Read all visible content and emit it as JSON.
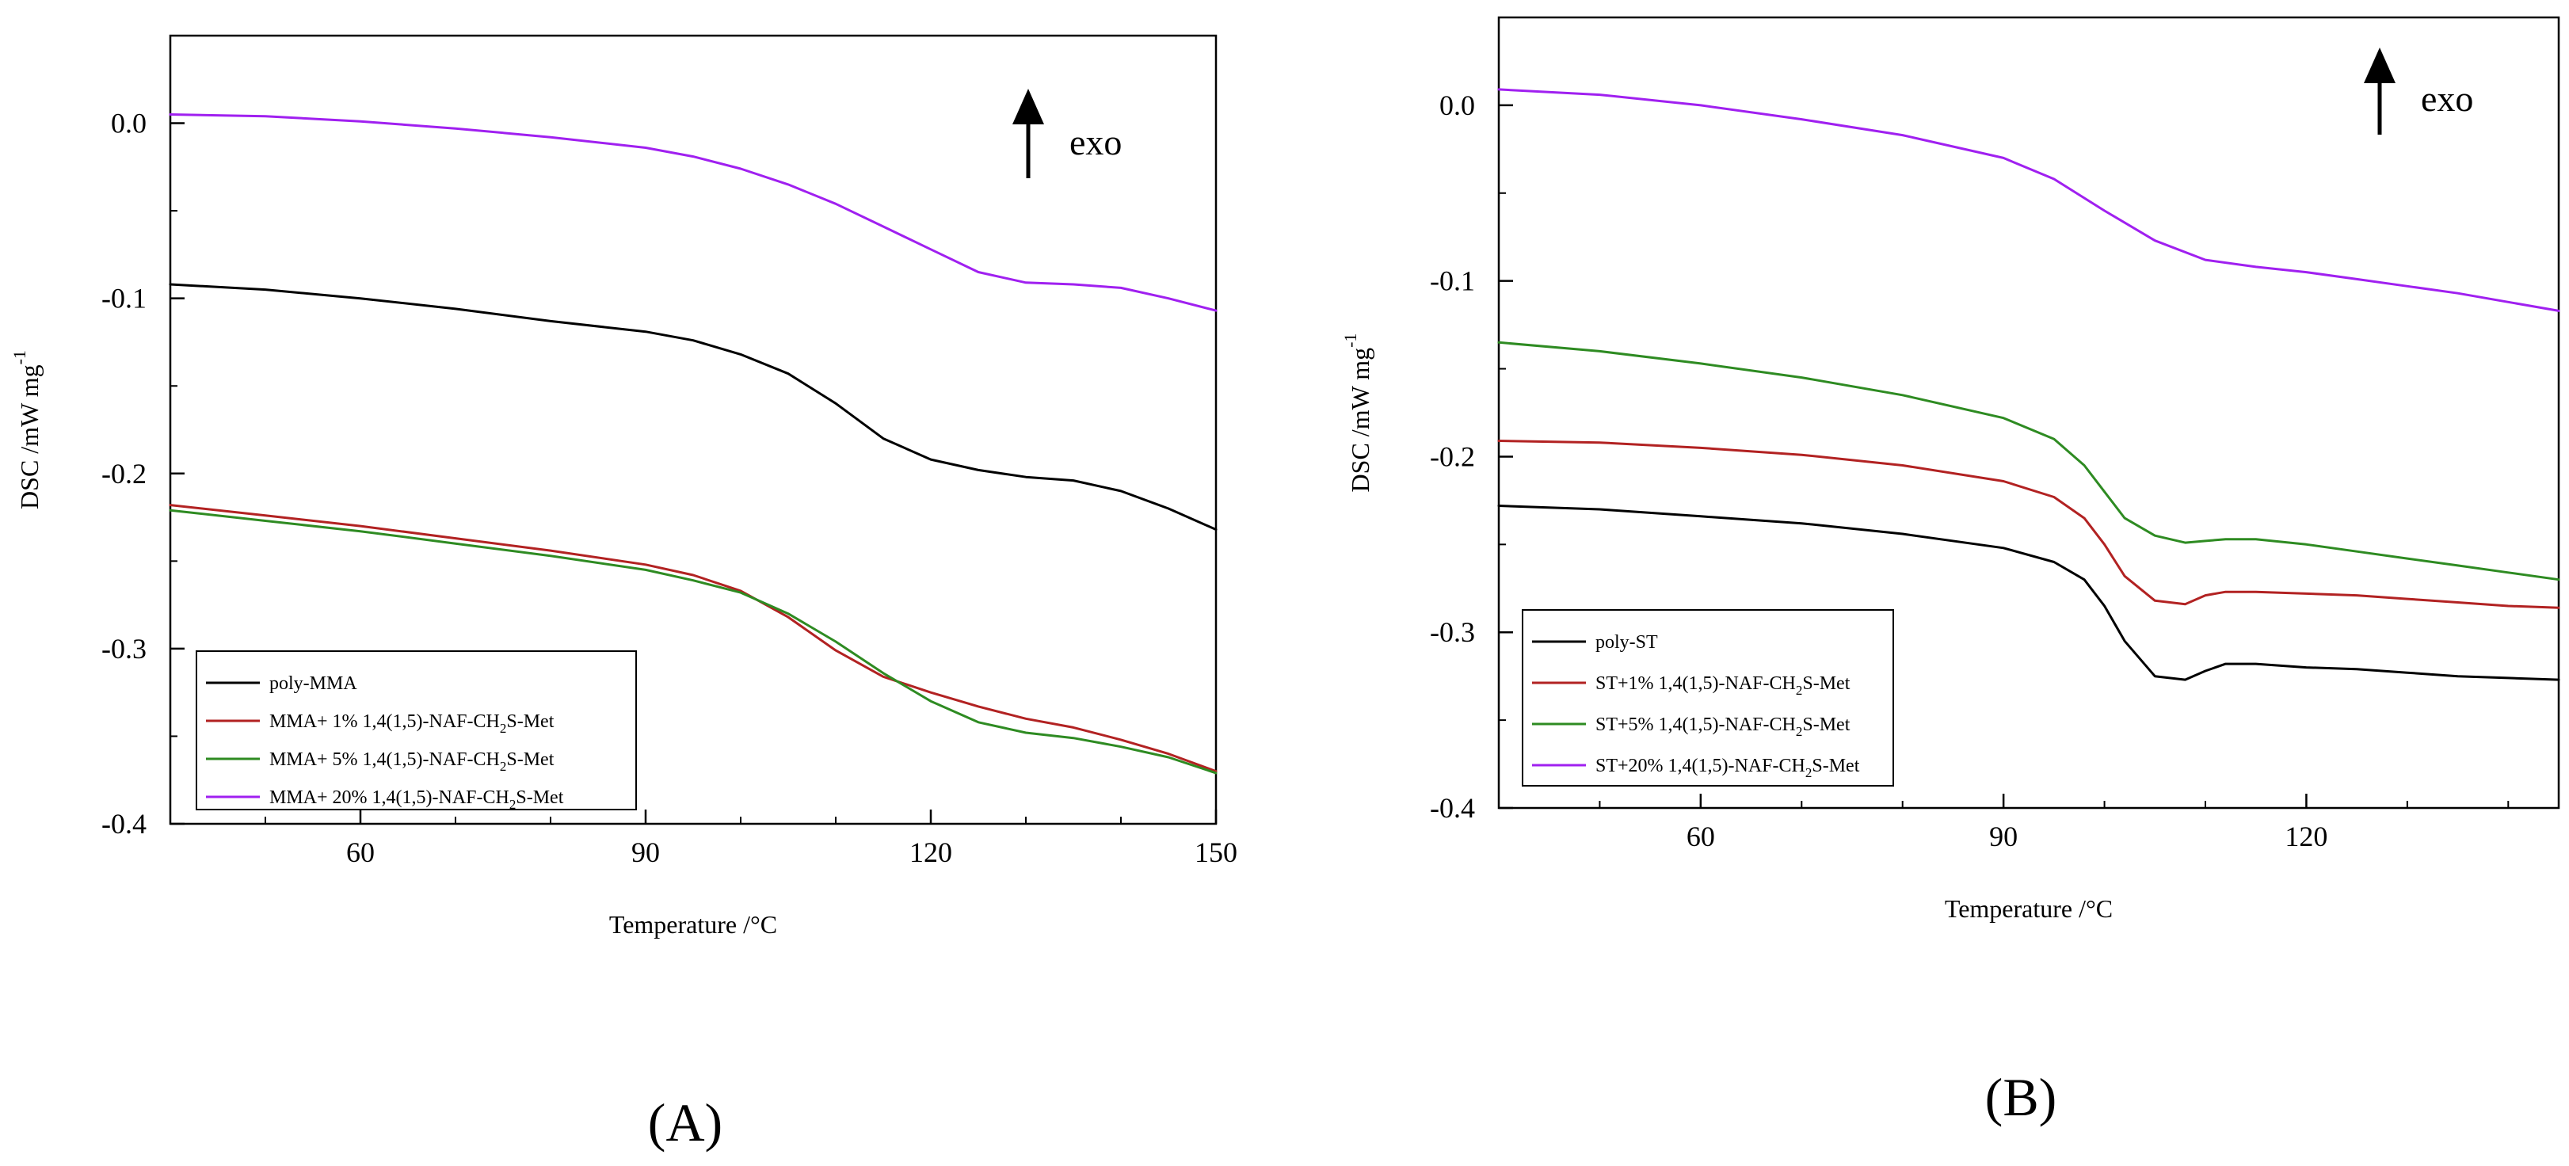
{
  "chart_data": [
    {
      "type": "line",
      "panel_label": "(A)",
      "title": "",
      "xlabel": "Temperature /°C",
      "ylabel": "DSC /mW mg",
      "ylabel_superscript": "-1",
      "xlim": [
        40,
        150
      ],
      "ylim": [
        -0.4,
        0.05
      ],
      "xticks": [
        60,
        90,
        120,
        150
      ],
      "yticks": [
        0.0,
        -0.1,
        -0.2,
        -0.3,
        -0.4
      ],
      "xtick_labels": [
        "60",
        "90",
        "120",
        "150"
      ],
      "ytick_labels": [
        "0.0",
        "-0.1",
        "-0.2",
        "-0.3",
        "-0.4"
      ],
      "annotation": "exo",
      "legend_position": "bottom-left",
      "grid": false,
      "series": [
        {
          "name": "poly-MMA",
          "color": "#000000",
          "x": [
            40,
            50,
            60,
            70,
            80,
            90,
            95,
            100,
            105,
            110,
            115,
            120,
            125,
            130,
            135,
            140,
            145,
            150
          ],
          "y": [
            -0.092,
            -0.095,
            -0.1,
            -0.106,
            -0.113,
            -0.119,
            -0.124,
            -0.132,
            -0.143,
            -0.16,
            -0.18,
            -0.192,
            -0.198,
            -0.202,
            -0.204,
            -0.21,
            -0.22,
            -0.232
          ]
        },
        {
          "name": "MMA+ 1% 1,4(1,5)-NAF-CH2S-Met",
          "color": "#b22222",
          "x": [
            40,
            50,
            60,
            70,
            80,
            90,
            95,
            100,
            105,
            110,
            115,
            120,
            125,
            130,
            135,
            140,
            145,
            150
          ],
          "y": [
            -0.218,
            -0.224,
            -0.23,
            -0.237,
            -0.244,
            -0.252,
            -0.258,
            -0.267,
            -0.282,
            -0.301,
            -0.316,
            -0.325,
            -0.333,
            -0.34,
            -0.345,
            -0.352,
            -0.36,
            -0.37
          ]
        },
        {
          "name": "MMA+ 5% 1,4(1,5)-NAF-CH2S-Met",
          "color": "#2e8b22",
          "x": [
            40,
            50,
            60,
            70,
            80,
            90,
            95,
            100,
            105,
            110,
            115,
            120,
            125,
            130,
            135,
            140,
            145,
            150
          ],
          "y": [
            -0.221,
            -0.227,
            -0.233,
            -0.24,
            -0.247,
            -0.255,
            -0.261,
            -0.268,
            -0.28,
            -0.296,
            -0.314,
            -0.33,
            -0.342,
            -0.348,
            -0.351,
            -0.356,
            -0.362,
            -0.371
          ]
        },
        {
          "name": "MMA+ 20% 1,4(1,5)-NAF-CH2S-Met",
          "color": "#a020f0",
          "x": [
            40,
            50,
            60,
            70,
            80,
            90,
            95,
            100,
            105,
            110,
            115,
            120,
            125,
            130,
            135,
            140,
            145,
            150
          ],
          "y": [
            0.005,
            0.004,
            0.001,
            -0.003,
            -0.008,
            -0.014,
            -0.019,
            -0.026,
            -0.035,
            -0.046,
            -0.059,
            -0.072,
            -0.085,
            -0.091,
            -0.092,
            -0.094,
            -0.1,
            -0.107
          ]
        }
      ],
      "legend_labels": [
        {
          "base": "poly-MMA",
          "sub": "",
          "tail": ""
        },
        {
          "base": "MMA+ 1% 1,4(1,5)-NAF-CH",
          "sub": "2",
          "tail": "S-Met"
        },
        {
          "base": "MMA+ 5% 1,4(1,5)-NAF-CH",
          "sub": "2",
          "tail": "S-Met"
        },
        {
          "base": "MMA+ 20% 1,4(1,5)-NAF-CH",
          "sub": "2",
          "tail": "S-Met"
        }
      ]
    },
    {
      "type": "line",
      "panel_label": "(B)",
      "title": "",
      "xlabel": "Temperature /°C",
      "ylabel": "DSC /mW mg",
      "ylabel_superscript": "-1",
      "xlim": [
        40,
        145
      ],
      "ylim": [
        -0.4,
        0.05
      ],
      "xticks": [
        60,
        90,
        120
      ],
      "yticks": [
        0.0,
        -0.1,
        -0.2,
        -0.3,
        -0.4
      ],
      "xtick_labels": [
        "60",
        "90",
        "120"
      ],
      "ytick_labels": [
        "0.0",
        "-0.1",
        "-0.2",
        "-0.3",
        "-0.4"
      ],
      "annotation": "exo",
      "legend_position": "bottom-left",
      "grid": false,
      "series": [
        {
          "name": "poly-ST",
          "color": "#000000",
          "x": [
            40,
            50,
            60,
            70,
            80,
            90,
            95,
            98,
            100,
            102,
            105,
            108,
            110,
            112,
            115,
            120,
            125,
            130,
            135,
            140,
            145
          ],
          "y": [
            -0.228,
            -0.23,
            -0.234,
            -0.238,
            -0.244,
            -0.252,
            -0.26,
            -0.27,
            -0.285,
            -0.305,
            -0.325,
            -0.327,
            -0.322,
            -0.318,
            -0.318,
            -0.32,
            -0.321,
            -0.323,
            -0.325,
            -0.326,
            -0.327
          ]
        },
        {
          "name": "ST+1% 1,4(1,5)-NAF-CH2S-Met",
          "color": "#b22222",
          "x": [
            40,
            50,
            60,
            70,
            80,
            90,
            95,
            98,
            100,
            102,
            105,
            108,
            110,
            112,
            115,
            120,
            125,
            130,
            135,
            140,
            145
          ],
          "y": [
            -0.191,
            -0.192,
            -0.195,
            -0.199,
            -0.205,
            -0.214,
            -0.223,
            -0.235,
            -0.25,
            -0.268,
            -0.282,
            -0.284,
            -0.279,
            -0.277,
            -0.277,
            -0.278,
            -0.279,
            -0.281,
            -0.283,
            -0.285,
            -0.286
          ]
        },
        {
          "name": "ST+5% 1,4(1,5)-NAF-CH2S-Met",
          "color": "#2e8b22",
          "x": [
            40,
            50,
            60,
            70,
            80,
            90,
            95,
            98,
            100,
            102,
            105,
            108,
            110,
            112,
            115,
            120,
            125,
            130,
            135,
            140,
            145
          ],
          "y": [
            -0.135,
            -0.14,
            -0.147,
            -0.155,
            -0.165,
            -0.178,
            -0.19,
            -0.205,
            -0.22,
            -0.235,
            -0.245,
            -0.249,
            -0.248,
            -0.247,
            -0.247,
            -0.25,
            -0.254,
            -0.258,
            -0.262,
            -0.266,
            -0.27
          ]
        },
        {
          "name": "ST+20% 1,4(1,5)-NAF-CH2S-Met",
          "color": "#a020f0",
          "x": [
            40,
            50,
            60,
            70,
            80,
            90,
            95,
            100,
            105,
            110,
            115,
            120,
            125,
            130,
            135,
            140,
            145
          ],
          "y": [
            0.009,
            0.006,
            0.0,
            -0.008,
            -0.017,
            -0.03,
            -0.042,
            -0.06,
            -0.077,
            -0.088,
            -0.092,
            -0.095,
            -0.099,
            -0.103,
            -0.107,
            -0.112,
            -0.117
          ]
        }
      ],
      "legend_labels": [
        {
          "base": "poly-ST",
          "sub": "",
          "tail": ""
        },
        {
          "base": "ST+1% 1,4(1,5)-NAF-CH",
          "sub": "2",
          "tail": "S-Met"
        },
        {
          "base": "ST+5% 1,4(1,5)-NAF-CH",
          "sub": "2",
          "tail": "S-Met"
        },
        {
          "base": "ST+20% 1,4(1,5)-NAF-CH",
          "sub": "2",
          "tail": "S-Met"
        }
      ]
    }
  ]
}
